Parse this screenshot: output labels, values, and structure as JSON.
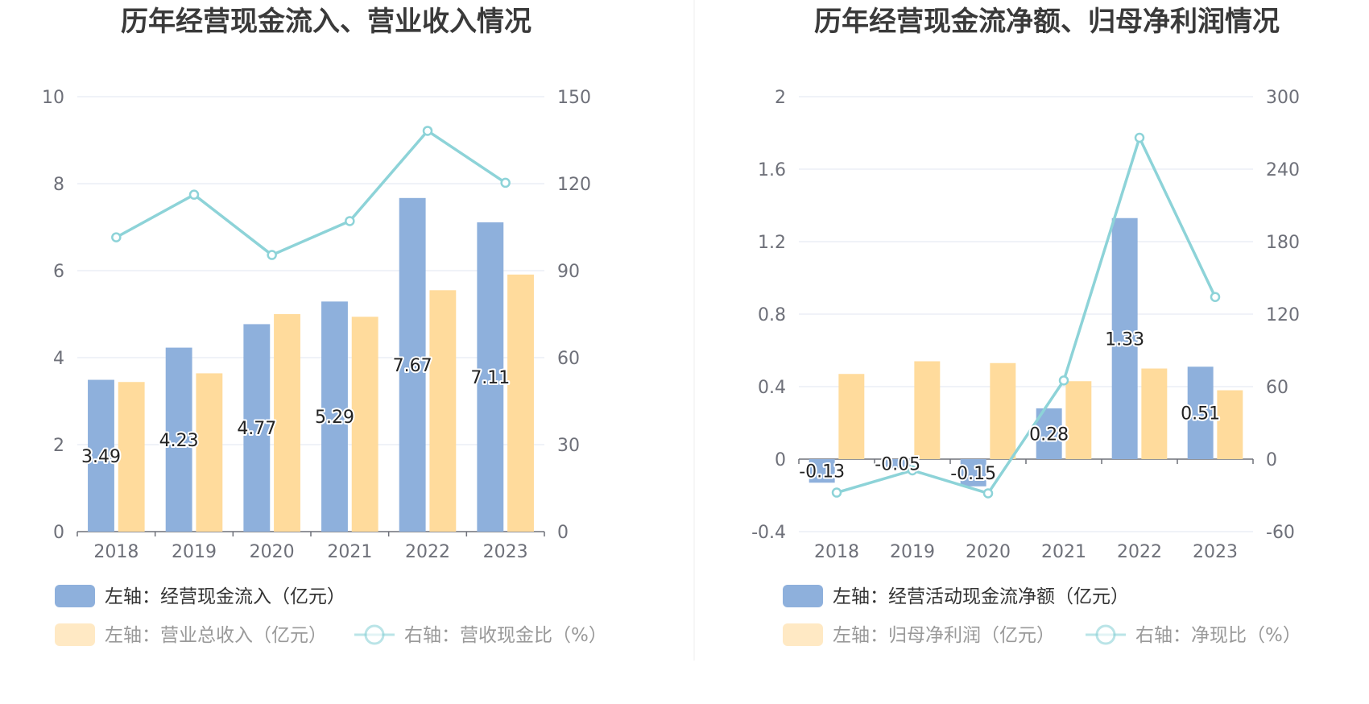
{
  "chart_data": [
    {
      "type": "bar",
      "title": "历年经营现金流入、营业收入情况",
      "categories": [
        "2018",
        "2019",
        "2020",
        "2021",
        "2022",
        "2023"
      ],
      "left_axis": {
        "min": 0,
        "max": 10,
        "ticks": [
          "0",
          "2",
          "4",
          "6",
          "8",
          "10"
        ]
      },
      "right_axis": {
        "min": 0,
        "max": 150,
        "ticks": [
          "0",
          "30",
          "60",
          "90",
          "120",
          "150"
        ]
      },
      "series": [
        {
          "name": "左轴：经营现金流入（亿元）",
          "kind": "bar",
          "axis": "left",
          "color": "#8eb0dc",
          "values": [
            3.49,
            4.23,
            4.77,
            5.29,
            7.67,
            7.11
          ],
          "labels": [
            "3.49",
            "4.23",
            "4.77",
            "5.29",
            "7.67",
            "7.11"
          ]
        },
        {
          "name": "左轴：营业总收入（亿元）",
          "kind": "bar",
          "axis": "left",
          "color": "#ffdb9c",
          "values": [
            3.44,
            3.64,
            5.0,
            4.94,
            5.55,
            5.91
          ]
        },
        {
          "name": "右轴：营收现金比（%）",
          "kind": "line",
          "axis": "right",
          "color": "#8dd3d8",
          "values": [
            101.5,
            116.2,
            95.4,
            107.1,
            138.2,
            120.3
          ]
        }
      ],
      "legend_position": "bottom-left"
    },
    {
      "type": "bar",
      "title": "历年经营现金流净额、归母净利润情况",
      "categories": [
        "2018",
        "2019",
        "2020",
        "2021",
        "2022",
        "2023"
      ],
      "left_axis": {
        "min": -0.4,
        "max": 2,
        "ticks": [
          "-0.4",
          "0",
          "0.4",
          "0.8",
          "1.2",
          "1.6",
          "2"
        ]
      },
      "right_axis": {
        "min": -60,
        "max": 300,
        "ticks": [
          "-60",
          "0",
          "60",
          "120",
          "180",
          "240",
          "300"
        ]
      },
      "series": [
        {
          "name": "左轴：经营活动现金流净额（亿元）",
          "kind": "bar",
          "axis": "left",
          "color": "#8eb0dc",
          "values": [
            -0.13,
            -0.05,
            -0.15,
            0.28,
            1.33,
            0.51
          ],
          "labels": [
            "-0.13",
            "-0.05",
            "-0.15",
            "0.28",
            "1.33",
            "0.51"
          ]
        },
        {
          "name": "左轴：归母净利润（亿元）",
          "kind": "bar",
          "axis": "left",
          "color": "#ffdb9c",
          "values": [
            0.47,
            0.54,
            0.53,
            0.43,
            0.5,
            0.38
          ]
        },
        {
          "name": "右轴：净现比（%）",
          "kind": "line",
          "axis": "right",
          "color": "#8dd3d8",
          "values": [
            -27.7,
            -9.3,
            -28.3,
            65.1,
            266.0,
            134.2
          ]
        }
      ],
      "legend_position": "bottom-left"
    }
  ],
  "colors": {
    "grid": "#e0e6f1",
    "axis": "#6e7079",
    "divider": "#eeeeee"
  }
}
